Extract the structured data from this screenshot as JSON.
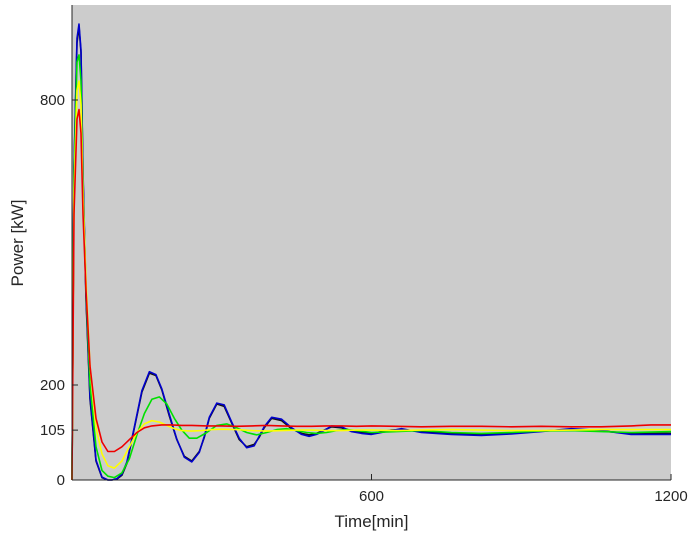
{
  "chart_data": {
    "type": "line",
    "title": "",
    "xlabel": "Time[min]",
    "ylabel": "Power [kW]",
    "xlim": [
      0,
      1200
    ],
    "ylim": [
      0,
      1000
    ],
    "xticks": [
      600,
      1200
    ],
    "xtick_labels": [
      "600",
      "1200"
    ],
    "yticks": [
      0,
      105,
      200,
      800
    ],
    "ytick_labels": [
      "0",
      "105",
      "200",
      "800"
    ],
    "grid": false,
    "legend": "none",
    "plot_background": "#cccccc",
    "series": [
      {
        "color": "#111111",
        "x": [
          0,
          4,
          10,
          14,
          18,
          22,
          28,
          36,
          48,
          60,
          72,
          80,
          90,
          100,
          110,
          125,
          140,
          155,
          168,
          180,
          195,
          210,
          225,
          240,
          255,
          265,
          275,
          290,
          305,
          320,
          335,
          350,
          365,
          375,
          385,
          400,
          420,
          440,
          460,
          475,
          490,
          505,
          520,
          540,
          560,
          580,
          600,
          620,
          640,
          660,
          700,
          760,
          820,
          880,
          940,
          1000,
          1060,
          1120,
          1200
        ],
        "y": [
          0,
          650,
          920,
          955,
          900,
          640,
          380,
          170,
          40,
          5,
          0,
          0,
          2,
          10,
          35,
          110,
          185,
          225,
          220,
          190,
          135,
          85,
          50,
          40,
          60,
          90,
          130,
          160,
          155,
          120,
          85,
          70,
          75,
          90,
          110,
          130,
          125,
          108,
          98,
          95,
          98,
          105,
          112,
          110,
          104,
          100,
          98,
          102,
          105,
          106,
          102,
          98,
          96,
          99,
          103,
          106,
          103,
          98,
          98
        ]
      },
      {
        "color": "#0000cc",
        "x": [
          0,
          4,
          10,
          14,
          18,
          22,
          28,
          36,
          48,
          60,
          72,
          80,
          90,
          100,
          110,
          125,
          140,
          155,
          168,
          180,
          195,
          210,
          225,
          240,
          255,
          265,
          275,
          290,
          305,
          320,
          335,
          350,
          365,
          375,
          385,
          400,
          420,
          440,
          460,
          475,
          490,
          505,
          520,
          540,
          560,
          580,
          600,
          620,
          640,
          660,
          700,
          760,
          820,
          880,
          940,
          1000,
          1060,
          1120,
          1200
        ],
        "y": [
          0,
          660,
          930,
          960,
          905,
          650,
          390,
          175,
          42,
          6,
          0,
          0,
          3,
          12,
          38,
          112,
          188,
          228,
          222,
          192,
          138,
          86,
          48,
          38,
          58,
          92,
          132,
          162,
          158,
          122,
          88,
          68,
          72,
          92,
          112,
          132,
          128,
          110,
          96,
          92,
          96,
          104,
          114,
          112,
          102,
          98,
          96,
          100,
          104,
          108,
          100,
          96,
          94,
          97,
          102,
          108,
          104,
          96,
          96
        ]
      },
      {
        "color": "#00e000",
        "x": [
          0,
          4,
          10,
          14,
          18,
          22,
          28,
          36,
          48,
          60,
          72,
          85,
          100,
          115,
          130,
          145,
          160,
          175,
          190,
          205,
          220,
          235,
          250,
          270,
          290,
          310,
          330,
          350,
          370,
          390,
          410,
          430,
          450,
          470,
          490,
          510,
          530,
          550,
          570,
          600,
          650,
          700,
          760,
          820,
          880,
          940,
          1000,
          1060,
          1120,
          1200
        ],
        "y": [
          0,
          640,
          880,
          895,
          840,
          620,
          400,
          200,
          70,
          20,
          8,
          5,
          15,
          45,
          95,
          140,
          170,
          175,
          160,
          130,
          105,
          88,
          88,
          100,
          115,
          118,
          110,
          100,
          95,
          100,
          106,
          108,
          104,
          100,
          98,
          100,
          104,
          106,
          104,
          100,
          102,
          104,
          100,
          98,
          100,
          103,
          104,
          102,
          100,
          102
        ]
      },
      {
        "color": "#ffff00",
        "x": [
          0,
          4,
          10,
          14,
          18,
          22,
          28,
          36,
          48,
          60,
          72,
          85,
          100,
          115,
          130,
          145,
          160,
          175,
          190,
          205,
          220,
          240,
          260,
          280,
          300,
          330,
          360,
          390,
          420,
          450,
          480,
          510,
          540,
          570,
          600,
          650,
          700,
          760,
          820,
          880,
          940,
          1000,
          1060,
          1120,
          1200
        ],
        "y": [
          0,
          600,
          820,
          840,
          790,
          600,
          420,
          240,
          110,
          55,
          30,
          25,
          40,
          70,
          100,
          118,
          125,
          122,
          115,
          108,
          104,
          103,
          104,
          106,
          107,
          106,
          104,
          103,
          104,
          105,
          105,
          104,
          104,
          105,
          105,
          104,
          105,
          106,
          105,
          104,
          104,
          105,
          106,
          106,
          106
        ]
      },
      {
        "color": "#ee0000",
        "x": [
          0,
          4,
          10,
          14,
          18,
          22,
          28,
          36,
          48,
          60,
          72,
          85,
          100,
          115,
          130,
          145,
          160,
          180,
          200,
          220,
          240,
          270,
          300,
          330,
          360,
          390,
          420,
          450,
          480,
          510,
          540,
          570,
          600,
          650,
          700,
          760,
          820,
          880,
          940,
          1000,
          1060,
          1120,
          1160,
          1200
        ],
        "y": [
          0,
          560,
          760,
          780,
          730,
          560,
          400,
          240,
          130,
          80,
          60,
          60,
          70,
          85,
          100,
          110,
          114,
          116,
          116,
          115,
          115,
          114,
          114,
          113,
          114,
          115,
          114,
          113,
          113,
          114,
          114,
          113,
          114,
          113,
          112,
          113,
          113,
          112,
          113,
          112,
          112,
          114,
          116,
          116
        ]
      }
    ]
  }
}
